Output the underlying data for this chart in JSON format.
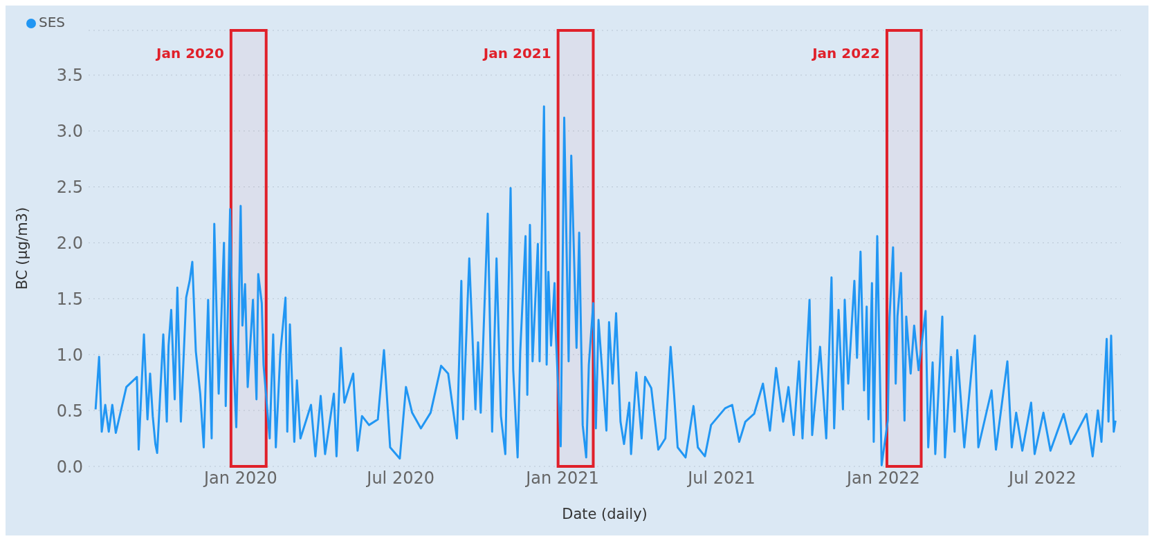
{
  "chart_data": {
    "type": "line",
    "xlabel": "Date (daily)",
    "ylabel": "BC (µg/m3)",
    "legend": "top left",
    "grid": "y",
    "xlim": [
      "2019-07-12",
      "2022-09-28"
    ],
    "xticks": [
      {
        "value": "2020-01-01",
        "label": "Jan 2020"
      },
      {
        "value": "2020-07-01",
        "label": "Jul 2020"
      },
      {
        "value": "2021-01-01",
        "label": "Jan 2021"
      },
      {
        "value": "2021-07-01",
        "label": "Jul 2021"
      },
      {
        "value": "2022-01-01",
        "label": "Jan 2022"
      },
      {
        "value": "2022-07-01",
        "label": "Jul 2022"
      }
    ],
    "ylim": [
      0,
      3.9
    ],
    "yticks": [
      {
        "value": 0,
        "label": "0.0"
      },
      {
        "value": 0.5,
        "label": "0.5"
      },
      {
        "value": 1,
        "label": "1.0"
      },
      {
        "value": 1.5,
        "label": "1.5"
      },
      {
        "value": 2,
        "label": "2.0"
      },
      {
        "value": 2.5,
        "label": "2.5"
      },
      {
        "value": 3,
        "label": "3.0"
      },
      {
        "value": 3.5,
        "label": "3.5"
      }
    ],
    "bands": [
      {
        "axis": "x",
        "from": "2019-12-21",
        "to": "2020-01-30",
        "label": "Jan 2020",
        "color": "#e0202a"
      },
      {
        "axis": "x",
        "from": "2020-12-27",
        "to": "2021-02-05",
        "label": "Jan 2021",
        "color": "#e0202a"
      },
      {
        "axis": "x",
        "from": "2022-01-05",
        "to": "2022-02-13",
        "label": "Jan 2022",
        "color": "#e0202a"
      }
    ],
    "x": [
      "2019-07-20",
      "2019-07-24",
      "2019-07-27",
      "2019-07-31",
      "2019-08-04",
      "2019-08-08",
      "2019-08-12",
      "2019-08-24",
      "2019-09-05",
      "2019-09-07",
      "2019-09-13",
      "2019-09-17",
      "2019-09-20",
      "2019-09-23",
      "2019-09-26",
      "2019-09-28",
      "2019-10-05",
      "2019-10-09",
      "2019-10-11",
      "2019-10-14",
      "2019-10-18",
      "2019-10-21",
      "2019-10-25",
      "2019-10-31",
      "2019-11-04",
      "2019-11-07",
      "2019-11-11",
      "2019-11-16",
      "2019-11-20",
      "2019-11-25",
      "2019-11-29",
      "2019-12-02",
      "2019-12-07",
      "2019-12-13",
      "2019-12-15",
      "2019-12-20",
      "2019-12-23",
      "2019-12-27",
      "2019-12-29",
      "2020-01-01",
      "2020-01-03",
      "2020-01-06",
      "2020-01-09",
      "2020-01-15",
      "2020-01-19",
      "2020-01-21",
      "2020-01-25",
      "2020-01-27",
      "2020-02-03",
      "2020-02-07",
      "2020-02-10",
      "2020-02-15",
      "2020-02-21",
      "2020-02-23",
      "2020-02-26",
      "2020-03-02",
      "2020-03-05",
      "2020-03-09",
      "2020-03-17",
      "2020-03-21",
      "2020-03-26",
      "2020-04-01",
      "2020-04-06",
      "2020-04-16",
      "2020-04-19",
      "2020-04-24",
      "2020-04-28",
      "2020-05-08",
      "2020-05-13",
      "2020-05-18",
      "2020-05-26",
      "2020-06-05",
      "2020-06-12",
      "2020-06-19",
      "2020-06-30",
      "2020-07-07",
      "2020-07-14",
      "2020-07-24",
      "2020-08-04",
      "2020-08-16",
      "2020-08-24",
      "2020-09-03",
      "2020-09-08",
      "2020-09-10",
      "2020-09-17",
      "2020-09-24",
      "2020-09-27",
      "2020-09-30",
      "2020-10-08",
      "2020-10-13",
      "2020-10-18",
      "2020-10-23",
      "2020-10-28",
      "2020-11-03",
      "2020-11-06",
      "2020-11-11",
      "2020-11-14",
      "2020-11-20",
      "2020-11-22",
      "2020-11-25",
      "2020-11-28",
      "2020-12-04",
      "2020-12-06",
      "2020-12-11",
      "2020-12-14",
      "2020-12-16",
      "2020-12-19",
      "2020-12-23",
      "2020-12-24",
      "2020-12-30",
      "2021-01-03",
      "2021-01-08",
      "2021-01-11",
      "2021-01-17",
      "2021-01-20",
      "2021-01-24",
      "2021-01-28",
      "2021-01-31",
      "2021-02-05",
      "2021-02-08",
      "2021-02-11",
      "2021-02-20",
      "2021-02-23",
      "2021-02-27",
      "2021-03-03",
      "2021-03-08",
      "2021-03-12",
      "2021-03-18",
      "2021-03-20",
      "2021-03-26",
      "2021-04-01",
      "2021-04-05",
      "2021-04-12",
      "2021-04-20",
      "2021-04-28",
      "2021-05-04",
      "2021-05-08",
      "2021-05-12",
      "2021-05-21",
      "2021-05-30",
      "2021-06-04",
      "2021-06-12",
      "2021-06-19",
      "2021-07-05",
      "2021-07-13",
      "2021-07-21",
      "2021-07-28",
      "2021-08-07",
      "2021-08-17",
      "2021-08-25",
      "2021-09-01",
      "2021-09-09",
      "2021-09-15",
      "2021-09-21",
      "2021-09-27",
      "2021-10-01",
      "2021-10-09",
      "2021-10-12",
      "2021-10-21",
      "2021-10-28",
      "2021-11-03",
      "2021-11-06",
      "2021-11-11",
      "2021-11-16",
      "2021-11-18",
      "2021-11-22",
      "2021-11-29",
      "2021-12-02",
      "2021-12-06",
      "2021-12-10",
      "2021-12-13",
      "2021-12-15",
      "2021-12-19",
      "2021-12-21",
      "2021-12-25",
      "2021-12-30",
      "2022-01-06",
      "2022-01-08",
      "2022-01-12",
      "2022-01-15",
      "2022-01-17",
      "2022-01-21",
      "2022-01-25",
      "2022-01-27",
      "2022-02-01",
      "2022-02-05",
      "2022-02-10",
      "2022-02-18",
      "2022-02-21",
      "2022-02-26",
      "2022-03-01",
      "2022-03-09",
      "2022-03-12",
      "2022-03-19",
      "2022-03-23",
      "2022-03-26",
      "2022-04-03",
      "2022-04-15",
      "2022-04-19",
      "2022-05-04",
      "2022-05-09",
      "2022-05-22",
      "2022-05-27",
      "2022-06-01",
      "2022-06-08",
      "2022-06-18",
      "2022-06-22",
      "2022-07-02",
      "2022-07-10",
      "2022-07-25",
      "2022-08-02",
      "2022-08-20",
      "2022-08-27",
      "2022-09-02",
      "2022-09-06",
      "2022-09-12",
      "2022-09-14",
      "2022-09-17",
      "2022-09-20",
      "2022-09-22"
    ],
    "series": [
      {
        "name": "SES",
        "color": "#2196f3",
        "values": [
          0.51,
          0.98,
          0.31,
          0.55,
          0.31,
          0.55,
          0.3,
          0.71,
          0.8,
          0.15,
          1.18,
          0.42,
          0.83,
          0.45,
          0.2,
          0.12,
          1.18,
          0.4,
          1.08,
          1.4,
          0.6,
          1.6,
          0.4,
          1.51,
          1.66,
          1.83,
          1.03,
          0.65,
          0.17,
          1.49,
          0.25,
          2.17,
          0.65,
          2.0,
          0.54,
          2.3,
          1.11,
          0.35,
          1.03,
          2.33,
          1.26,
          1.63,
          0.71,
          1.49,
          0.6,
          1.72,
          1.46,
          0.91,
          0.25,
          1.18,
          0.17,
          1.0,
          1.51,
          0.31,
          1.27,
          0.22,
          0.77,
          0.25,
          0.45,
          0.55,
          0.09,
          0.63,
          0.11,
          0.65,
          0.09,
          1.06,
          0.57,
          0.83,
          0.14,
          0.45,
          0.37,
          0.42,
          1.04,
          0.17,
          0.07,
          0.71,
          0.48,
          0.34,
          0.48,
          0.9,
          0.83,
          0.25,
          1.66,
          0.42,
          1.86,
          0.51,
          1.11,
          0.48,
          2.26,
          0.31,
          1.86,
          0.45,
          0.11,
          2.49,
          0.86,
          0.08,
          1.03,
          2.06,
          0.64,
          2.16,
          0.94,
          1.99,
          0.94,
          3.22,
          0.91,
          1.74,
          1.08,
          1.64,
          1.26,
          0.18,
          3.12,
          0.94,
          2.78,
          1.06,
          2.09,
          0.37,
          0.08,
          0.91,
          1.46,
          0.34,
          1.31,
          0.32,
          1.29,
          0.74,
          1.37,
          0.4,
          0.2,
          0.57,
          0.11,
          0.84,
          0.25,
          0.8,
          0.7,
          0.15,
          0.25,
          1.07,
          0.64,
          0.17,
          0.08,
          0.54,
          0.17,
          0.09,
          0.37,
          0.52,
          0.55,
          0.22,
          0.4,
          0.47,
          0.74,
          0.32,
          0.88,
          0.4,
          0.71,
          0.28,
          0.94,
          0.25,
          1.49,
          0.28,
          1.07,
          0.25,
          1.69,
          0.34,
          1.4,
          0.51,
          1.49,
          0.74,
          1.66,
          0.97,
          1.92,
          0.68,
          1.43,
          0.42,
          1.64,
          0.22,
          2.06,
          0.01,
          0.41,
          1.33,
          1.96,
          0.74,
          1.34,
          1.73,
          0.41,
          1.34,
          0.83,
          1.26,
          0.86,
          1.39,
          0.17,
          0.93,
          0.11,
          1.34,
          0.08,
          0.98,
          0.31,
          1.04,
          0.17,
          1.17,
          0.17,
          0.68,
          0.15,
          0.94,
          0.17,
          0.48,
          0.14,
          0.57,
          0.11,
          0.48,
          0.14,
          0.47,
          0.2,
          0.47,
          0.09,
          0.5,
          0.22,
          1.14,
          0.4,
          1.17,
          0.31,
          0.41
        ]
      }
    ]
  }
}
